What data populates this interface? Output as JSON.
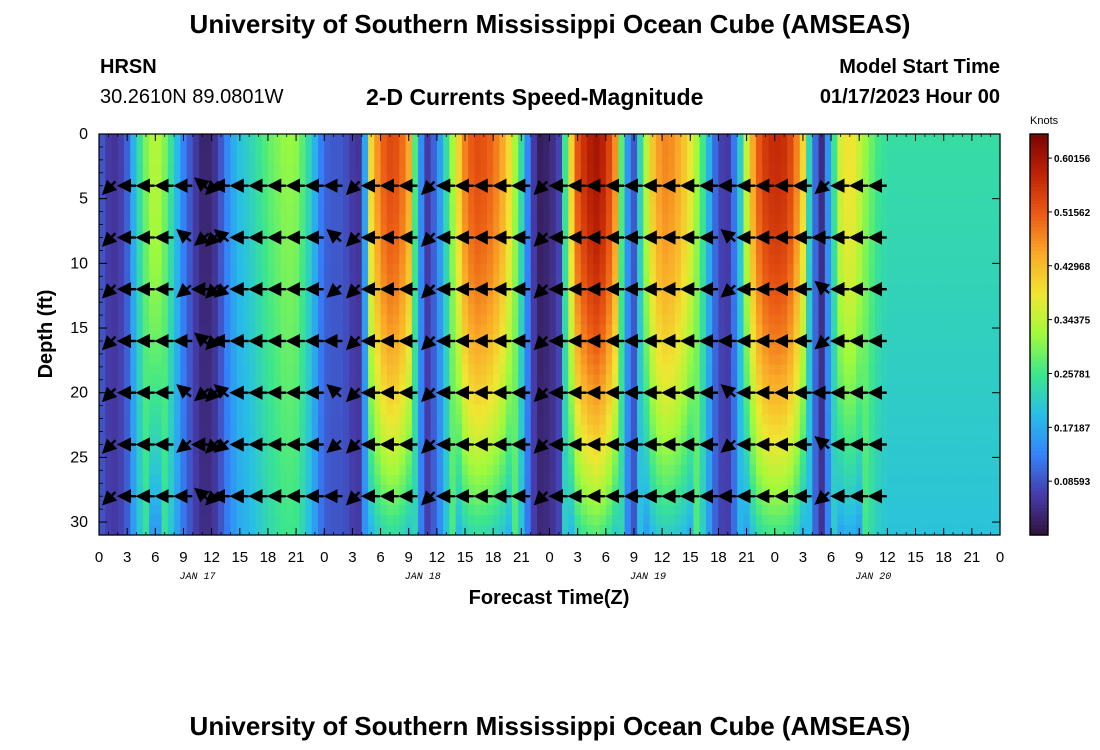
{
  "page_title": "University of Southern Mississippi Ocean Cube (AMSEAS)",
  "station": {
    "name": "HRSN",
    "coords": "30.2610N  89.0801W"
  },
  "model_start": {
    "label": "Model Start Time",
    "value": "01/17/2023 Hour 00"
  },
  "colorbar": {
    "unit": "Knots",
    "ticks": [
      "0.60156",
      "0.51562",
      "0.42968",
      "0.34375",
      "0.25781",
      "0.17187",
      "0.08593"
    ],
    "range": [
      0.0,
      0.64
    ]
  },
  "colors": {
    "low": "#30123b",
    "high": "#7a0403"
  },
  "chart_data": {
    "type": "heatmap",
    "title": "2-D Currents Speed-Magnitude",
    "xlabel": "Forecast Time(Z)",
    "ylabel": "Depth (ft)",
    "x_range_hours": [
      0,
      96
    ],
    "x_ticks": [
      "0",
      "3",
      "6",
      "9",
      "12",
      "15",
      "18",
      "21",
      "0",
      "3",
      "6",
      "9",
      "12",
      "15",
      "18",
      "21",
      "0",
      "3",
      "6",
      "9",
      "12",
      "15",
      "18",
      "21",
      "0",
      "3",
      "6",
      "9",
      "12",
      "15",
      "18",
      "21",
      "0"
    ],
    "day_labels": [
      "JAN 17",
      "JAN 18",
      "JAN 19",
      "JAN 20"
    ],
    "y_range_ft": [
      0,
      31
    ],
    "y_ticks": [
      0,
      5,
      10,
      15,
      20,
      25,
      30
    ],
    "z_unit": "Knots",
    "z_range": [
      0.0,
      0.64
    ],
    "time_profile": [
      {
        "h": 0,
        "v": 0.1
      },
      {
        "h": 1,
        "v": 0.06
      },
      {
        "h": 2,
        "v": 0.05
      },
      {
        "h": 3,
        "v": 0.1
      },
      {
        "h": 4,
        "v": 0.22
      },
      {
        "h": 5,
        "v": 0.3
      },
      {
        "h": 6,
        "v": 0.35
      },
      {
        "h": 7,
        "v": 0.3
      },
      {
        "h": 8,
        "v": 0.22
      },
      {
        "h": 9,
        "v": 0.13
      },
      {
        "h": 10,
        "v": 0.07
      },
      {
        "h": 11,
        "v": 0.03
      },
      {
        "h": 12,
        "v": 0.03
      },
      {
        "h": 13,
        "v": 0.09
      },
      {
        "h": 14,
        "v": 0.16
      },
      {
        "h": 15,
        "v": 0.2
      },
      {
        "h": 16,
        "v": 0.22
      },
      {
        "h": 17,
        "v": 0.25
      },
      {
        "h": 18,
        "v": 0.28
      },
      {
        "h": 19,
        "v": 0.3
      },
      {
        "h": 20,
        "v": 0.32
      },
      {
        "h": 21,
        "v": 0.31
      },
      {
        "h": 22,
        "v": 0.26
      },
      {
        "h": 23,
        "v": 0.18
      },
      {
        "h": 24,
        "v": 0.1
      },
      {
        "h": 25,
        "v": 0.09
      },
      {
        "h": 26,
        "v": 0.09
      },
      {
        "h": 27,
        "v": 0.06
      },
      {
        "h": 28,
        "v": 0.05
      },
      {
        "h": 29,
        "v": 0.4
      },
      {
        "h": 30,
        "v": 0.5
      },
      {
        "h": 31,
        "v": 0.53
      },
      {
        "h": 32,
        "v": 0.52
      },
      {
        "h": 33,
        "v": 0.45
      },
      {
        "h": 34,
        "v": 0.18
      },
      {
        "h": 35,
        "v": 0.06
      },
      {
        "h": 36,
        "v": 0.12
      },
      {
        "h": 37,
        "v": 0.24
      },
      {
        "h": 38,
        "v": 0.37
      },
      {
        "h": 39,
        "v": 0.48
      },
      {
        "h": 40,
        "v": 0.53
      },
      {
        "h": 41,
        "v": 0.52
      },
      {
        "h": 42,
        "v": 0.5
      },
      {
        "h": 43,
        "v": 0.45
      },
      {
        "h": 44,
        "v": 0.37
      },
      {
        "h": 45,
        "v": 0.24
      },
      {
        "h": 46,
        "v": 0.08
      },
      {
        "h": 47,
        "v": 0.02
      },
      {
        "h": 48,
        "v": 0.03
      },
      {
        "h": 49,
        "v": 0.07
      },
      {
        "h": 50,
        "v": 0.35
      },
      {
        "h": 51,
        "v": 0.52
      },
      {
        "h": 52,
        "v": 0.58
      },
      {
        "h": 53,
        "v": 0.6
      },
      {
        "h": 54,
        "v": 0.57
      },
      {
        "h": 55,
        "v": 0.47
      },
      {
        "h": 56,
        "v": 0.18
      },
      {
        "h": 57,
        "v": 0.09
      },
      {
        "h": 58,
        "v": 0.3
      },
      {
        "h": 59,
        "v": 0.42
      },
      {
        "h": 60,
        "v": 0.48
      },
      {
        "h": 61,
        "v": 0.47
      },
      {
        "h": 62,
        "v": 0.44
      },
      {
        "h": 63,
        "v": 0.38
      },
      {
        "h": 64,
        "v": 0.3
      },
      {
        "h": 65,
        "v": 0.18
      },
      {
        "h": 66,
        "v": 0.07
      },
      {
        "h": 67,
        "v": 0.06
      },
      {
        "h": 68,
        "v": 0.15
      },
      {
        "h": 69,
        "v": 0.35
      },
      {
        "h": 70,
        "v": 0.5
      },
      {
        "h": 71,
        "v": 0.55
      },
      {
        "h": 72,
        "v": 0.57
      },
      {
        "h": 73,
        "v": 0.56
      },
      {
        "h": 74,
        "v": 0.52
      },
      {
        "h": 75,
        "v": 0.4
      },
      {
        "h": 76,
        "v": 0.14
      },
      {
        "h": 77,
        "v": 0.04
      },
      {
        "h": 78,
        "v": 0.2
      },
      {
        "h": 79,
        "v": 0.36
      },
      {
        "h": 80,
        "v": 0.4
      },
      {
        "h": 81,
        "v": 0.35
      },
      {
        "h": 82,
        "v": 0.3
      },
      {
        "h": 83,
        "v": 0.26
      },
      {
        "h": 84,
        "v": 0.24
      }
    ],
    "arrow_depths_ft": [
      4,
      8,
      12,
      16,
      20,
      24,
      28
    ],
    "arrow_times_h": [
      1.3,
      3.3,
      5.3,
      7.3,
      9.3,
      11.2,
      12.3,
      13.3,
      15.3,
      17.3,
      19.3,
      21.3,
      23.3,
      25.3,
      27.3,
      29.3,
      31.3,
      33.3,
      35.3,
      37.3,
      39.3,
      41.3,
      43.3,
      45.3,
      47.3,
      49.3,
      51.3,
      53.3,
      55.3,
      57.3,
      59.3,
      61.3,
      63.3,
      65.3,
      67.3,
      69.3,
      71.3,
      73.3,
      75.3,
      77.3,
      79.3,
      81.3,
      83.3
    ]
  },
  "footer_title": "University of Southern Mississippi Ocean Cube (AMSEAS)"
}
